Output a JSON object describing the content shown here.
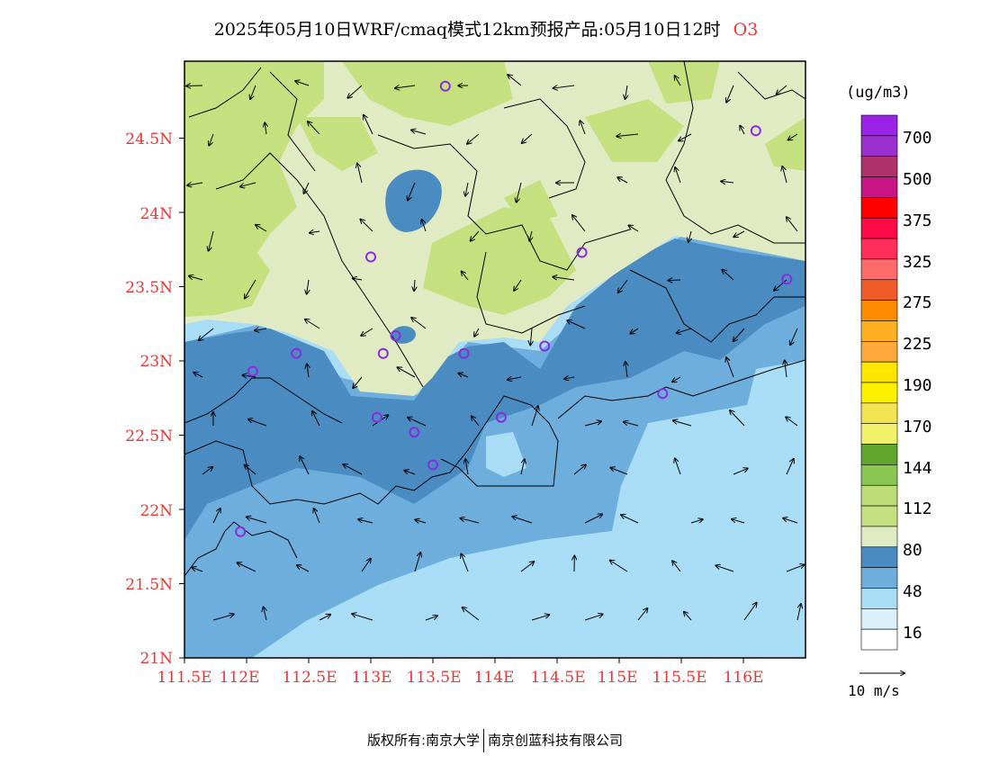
{
  "title": {
    "main": "2025年05月10日WRF/cmaq模式12km预报产品:05月10日12时",
    "pollutant": "O3"
  },
  "map": {
    "lat_labels": [
      "21N",
      "21.5N",
      "22N",
      "22.5N",
      "23N",
      "23.5N",
      "24N",
      "24.5N"
    ],
    "lon_labels": [
      "111.5E",
      "112E",
      "112.5E",
      "113E",
      "113.5E",
      "114E",
      "114.5E",
      "115E",
      "115.5E",
      "116E"
    ],
    "stations": [
      {
        "lon": 113.6,
        "lat": 24.85
      },
      {
        "lon": 116.1,
        "lat": 24.55
      },
      {
        "lon": 113.0,
        "lat": 23.7
      },
      {
        "lon": 114.7,
        "lat": 23.73
      },
      {
        "lon": 116.35,
        "lat": 23.55
      },
      {
        "lon": 113.2,
        "lat": 23.17
      },
      {
        "lon": 113.1,
        "lat": 23.05
      },
      {
        "lon": 112.4,
        "lat": 23.05
      },
      {
        "lon": 112.05,
        "lat": 22.93
      },
      {
        "lon": 113.75,
        "lat": 23.05
      },
      {
        "lon": 114.4,
        "lat": 23.1
      },
      {
        "lon": 115.35,
        "lat": 22.78
      },
      {
        "lon": 113.05,
        "lat": 22.62
      },
      {
        "lon": 113.35,
        "lat": 22.52
      },
      {
        "lon": 114.05,
        "lat": 22.62
      },
      {
        "lon": 113.5,
        "lat": 22.3
      },
      {
        "lon": 111.95,
        "lat": 21.85
      }
    ]
  },
  "legend": {
    "unit": "(ug/m3)",
    "labels": [
      "700",
      "500",
      "375",
      "325",
      "275",
      "225",
      "190",
      "170",
      "144",
      "112",
      "80",
      "48",
      "16"
    ],
    "colors": [
      "#9b22e6",
      "#9b2fd0",
      "#b0306a",
      "#c71585",
      "#ff0000",
      "#ff0a46",
      "#ff2f59",
      "#ff6a6a",
      "#f05a28",
      "#ff8c00",
      "#fdb022",
      "#ffa93b",
      "#ffe600",
      "#fff000",
      "#f2e350",
      "#f2f26a",
      "#5fa52e",
      "#8ac651",
      "#bcdc77",
      "#c5e07e",
      "#e0ebc4",
      "#4a8cc2",
      "#6daedd",
      "#a9dcf5",
      "#dcf0fb",
      "#ffffff"
    ]
  },
  "wind_key": {
    "label": "10 m/s"
  },
  "footer": {
    "left": "版权所有:南京大学",
    "right": "南京创蓝科技有限公司"
  }
}
